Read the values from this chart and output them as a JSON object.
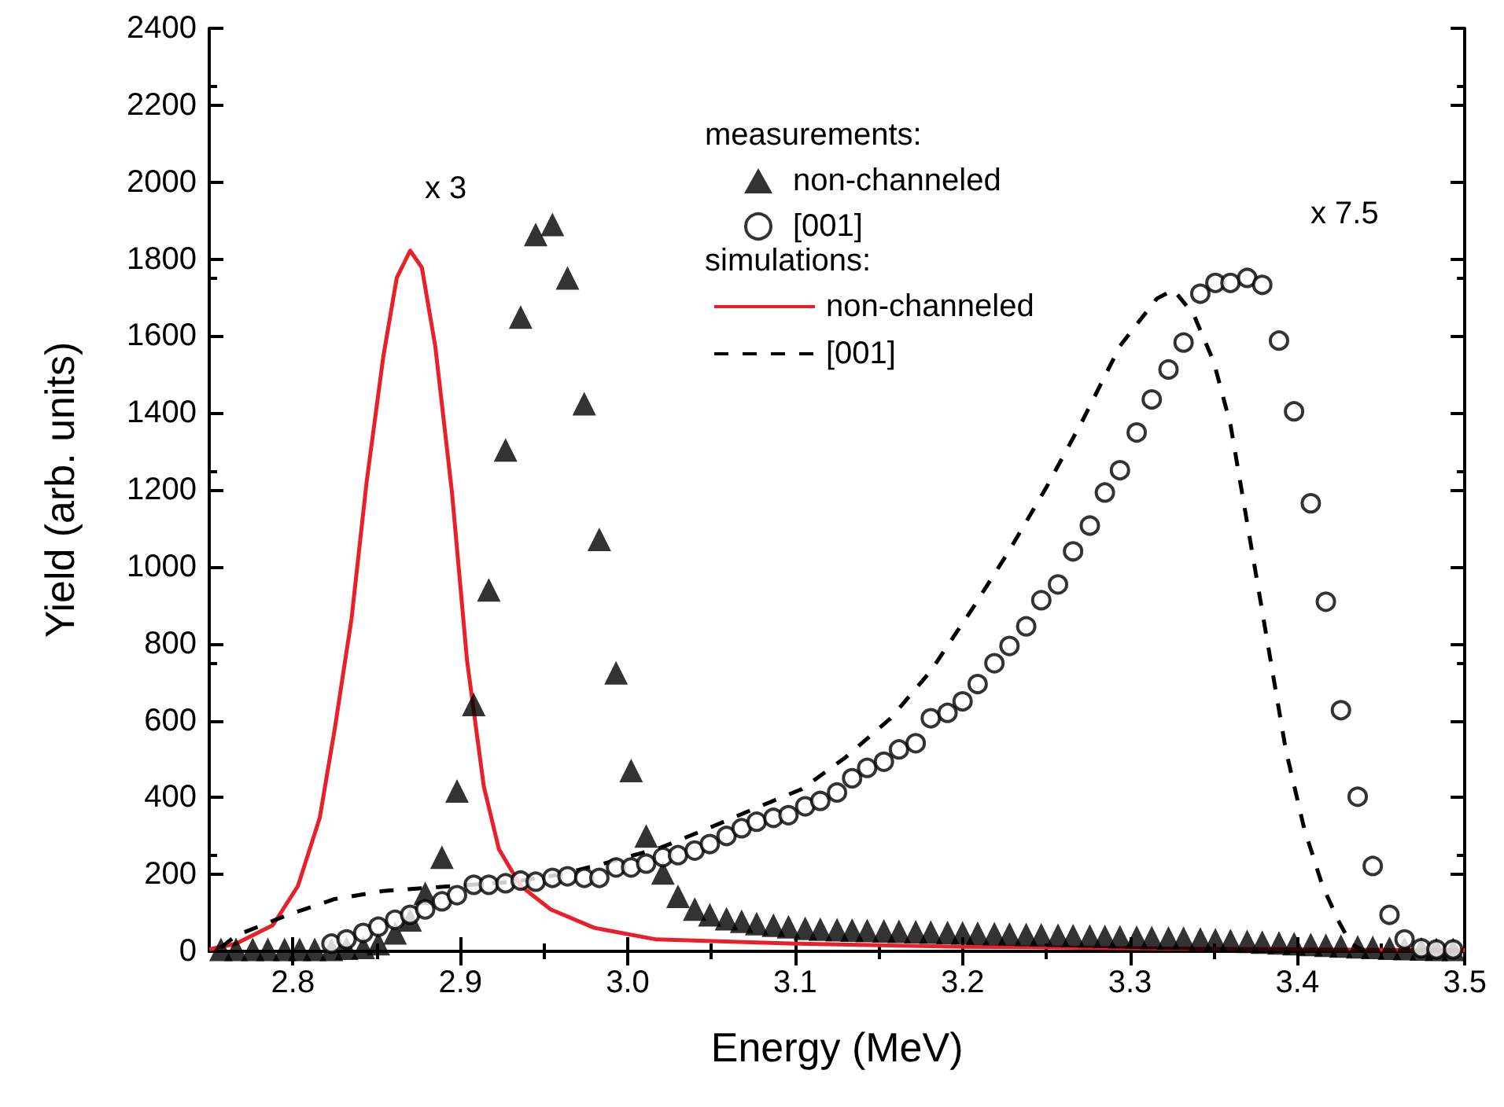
{
  "chart_data": {
    "type": "scatter",
    "xlabel": "Energy (MeV)",
    "ylabel": "Yield (arb. units)",
    "xlim": [
      2.75,
      3.5
    ],
    "xticks": [
      2.8,
      2.9,
      {
        "value": 3,
        "label": "3.0"
      },
      3.1,
      3.2,
      3.3,
      3.4,
      3.5
    ],
    "ylim": [
      0,
      2400
    ],
    "yticks": [
      0,
      200,
      400,
      600,
      800,
      1000,
      1200,
      1400,
      1600,
      1800,
      2000,
      2200,
      2400
    ],
    "grid": false,
    "legend": "top",
    "legend_title": "measurements:",
    "annotations": [
      "simulations:",
      "x 3",
      "x 7.5"
    ],
    "x": [
      2.757,
      2.766,
      2.776,
      2.785,
      2.795,
      2.804,
      2.813,
      2.823,
      2.832,
      2.842,
      2.851,
      2.861,
      2.87,
      2.879,
      2.889,
      2.898,
      2.908,
      2.917,
      2.927,
      2.936,
      2.945,
      2.955,
      2.964,
      2.974,
      2.983,
      2.993,
      3.002,
      3.011,
      3.021,
      3.03,
      3.04,
      3.049,
      3.059,
      3.068,
      3.077,
      3.087,
      3.096,
      3.106,
      3.115,
      3.125,
      3.134,
      3.143,
      3.153,
      3.162,
      3.172,
      3.181,
      3.191,
      3.2,
      3.209,
      3.219,
      3.228,
      3.238,
      3.247,
      3.257,
      3.266,
      3.276,
      3.285,
      3.294,
      3.304,
      3.313,
      3.323,
      3.332,
      3.342,
      3.351,
      3.36,
      3.37,
      3.379,
      3.389,
      3.398,
      3.408,
      3.417,
      3.426,
      3.436,
      3.445,
      3.455,
      3.464,
      3.474,
      3.483,
      3.493
    ],
    "series": [
      {
        "name": "non-channeled",
        "type": "scatter",
        "marker": "triangle",
        "color": "#000000",
        "values": [
          5,
          5,
          5,
          5,
          5,
          5,
          5,
          5,
          8,
          10,
          20,
          48,
          82,
          151,
          245,
          417,
          642,
          940,
          1304,
          1649,
          1864,
          1890,
          1751,
          1424,
          1071,
          724,
          470,
          300,
          204,
          143,
          110,
          95,
          85,
          78,
          72,
          68,
          64,
          60,
          58,
          56,
          55,
          54,
          53,
          52,
          51,
          50,
          49,
          48,
          47,
          46,
          45,
          44,
          43,
          42,
          41,
          40,
          39,
          38,
          37,
          36,
          35,
          34,
          32,
          30,
          28,
          26,
          24,
          22,
          20,
          18,
          16,
          14,
          12,
          10,
          8,
          7,
          6,
          5,
          5
        ]
      },
      {
        "name": "[001]",
        "type": "scatter",
        "marker": "circle",
        "color": "#000000",
        "values": [
          null,
          null,
          null,
          null,
          null,
          null,
          null,
          20,
          31,
          48,
          64,
          82,
          95,
          109,
          130,
          146,
          173,
          173,
          177,
          184,
          181,
          191,
          195,
          191,
          191,
          218,
          218,
          228,
          245,
          250,
          262,
          279,
          300,
          320,
          337,
          347,
          354,
          377,
          391,
          413,
          450,
          477,
          493,
          525,
          541,
          606,
          620,
          650,
          695,
          749,
          794,
          845,
          913,
          954,
          1040,
          1107,
          1193,
          1251,
          1349,
          1435,
          1513,
          1583,
          1710,
          1738,
          1738,
          1751,
          1733,
          1588,
          1404,
          1165,
          909,
          627,
          402,
          222,
          95,
          31,
          8,
          5,
          5
        ]
      },
      {
        "name": "non-channeled",
        "type": "line",
        "marker": "none",
        "line_style": "solid",
        "color": "#e8202a",
        "x": [
          2.75,
          2.766,
          2.788,
          2.803,
          2.816,
          2.825,
          2.835,
          2.844,
          2.854,
          2.862,
          2.87,
          2.877,
          2.885,
          2.895,
          2.904,
          2.914,
          2.923,
          2.936,
          2.954,
          2.98,
          3.017,
          3.1,
          3.2,
          3.3,
          3.4,
          3.5
        ],
        "values": [
          5,
          20,
          68,
          170,
          347,
          579,
          865,
          1220,
          1547,
          1751,
          1822,
          1778,
          1574,
          1193,
          756,
          429,
          266,
          170,
          109,
          61,
          31,
          20,
          12,
          8,
          5,
          3
        ]
      },
      {
        "name": "[001]",
        "type": "line",
        "marker": "none",
        "line_style": "dashed",
        "color": "#000000",
        "x": [
          2.757,
          2.766,
          2.797,
          2.825,
          2.854,
          2.88,
          2.93,
          2.96,
          2.989,
          3.02,
          3.052,
          3.074,
          3.104,
          3.13,
          3.157,
          3.181,
          3.206,
          3.228,
          3.25,
          3.272,
          3.294,
          3.316,
          3.326,
          3.338,
          3.35,
          3.36,
          3.368,
          3.376,
          3.384,
          3.393,
          3.404,
          3.415,
          3.425,
          3.432,
          3.44
        ],
        "values": [
          10,
          41,
          95,
          136,
          157,
          165,
          180,
          200,
          232,
          270,
          327,
          368,
          422,
          504,
          606,
          729,
          892,
          1043,
          1206,
          1383,
          1574,
          1697,
          1720,
          1656,
          1533,
          1370,
          1165,
          961,
          756,
          525,
          320,
          170,
          75,
          20,
          0
        ]
      }
    ]
  }
}
